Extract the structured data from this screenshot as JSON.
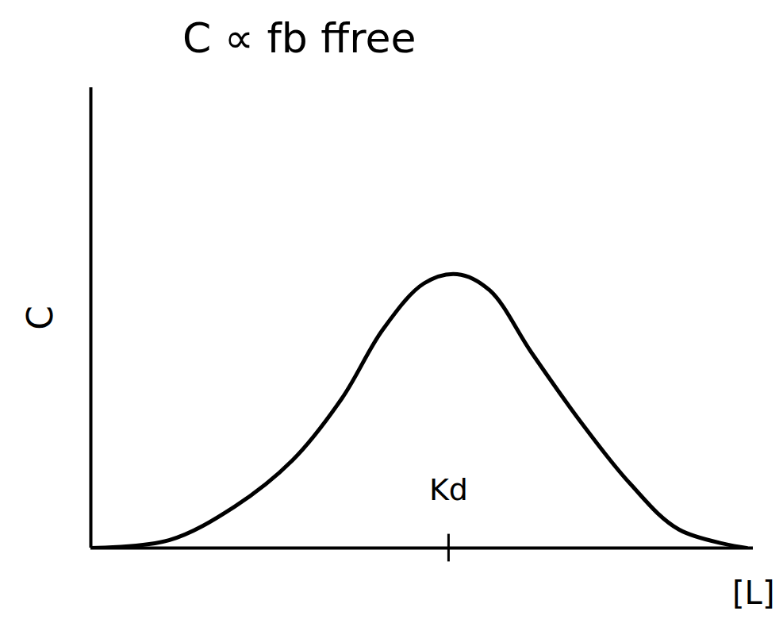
{
  "chart_data": {
    "type": "line",
    "title": "C ∝ fb ffree",
    "x_label": "[L]",
    "y_label": "C",
    "x": [
      0,
      11.8,
      21.7,
      30.4,
      37.9,
      44.1,
      50.3,
      55.3,
      60.2,
      66.5,
      73.9,
      81.4,
      88.8,
      99
    ],
    "values": [
      0,
      1.7,
      9,
      19,
      32.5,
      47.5,
      57.5,
      59.5,
      56,
      42.5,
      27.5,
      14,
      4,
      0
    ],
    "color": "#000000",
    "xlim": [
      0,
      100
    ],
    "ylim": [
      0,
      100
    ],
    "xticks": [],
    "yticks": [],
    "tick_labels": false,
    "annotations": [
      {
        "text": "Kd",
        "x": 54,
        "y": 12.5
      }
    ]
  }
}
